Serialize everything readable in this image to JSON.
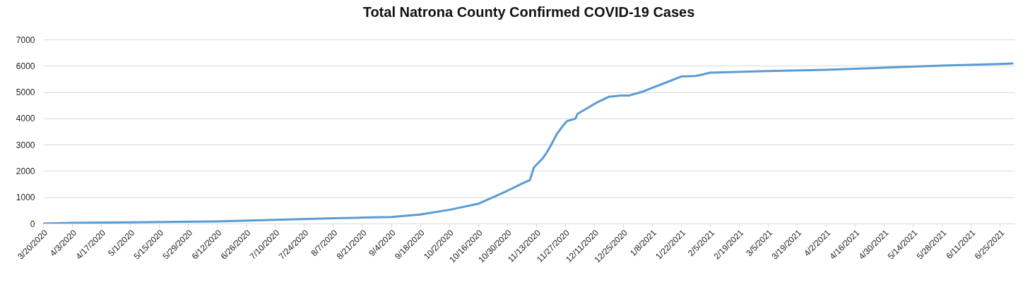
{
  "chart_data": {
    "type": "line",
    "title": "Total Natrona County Confirmed COVID-19 Cases",
    "x": [
      "2020-03-20",
      "2020-04-03",
      "2020-05-01",
      "2020-06-12",
      "2020-07-10",
      "2020-08-07",
      "2020-08-21",
      "2020-09-04",
      "2020-09-18",
      "2020-10-02",
      "2020-10-16",
      "2020-10-30",
      "2020-11-06",
      "2020-11-10",
      "2020-11-12",
      "2020-11-16",
      "2020-11-18",
      "2020-11-20",
      "2020-11-23",
      "2020-11-26",
      "2020-11-28",
      "2020-12-02",
      "2020-12-03",
      "2020-12-08",
      "2020-12-12",
      "2020-12-18",
      "2020-12-24",
      "2020-12-28",
      "2021-01-04",
      "2021-01-08",
      "2021-01-15",
      "2021-01-22",
      "2021-01-29",
      "2021-02-02",
      "2021-02-05",
      "2021-03-05",
      "2021-04-02",
      "2021-04-30",
      "2021-05-28",
      "2021-06-25",
      "2021-07-01"
    ],
    "series": [
      {
        "color": "#5b9bd5",
        "values": [
          0,
          30,
          50,
          80,
          140,
          200,
          225,
          250,
          340,
          520,
          750,
          1240,
          1510,
          1650,
          2140,
          2460,
          2680,
          2950,
          3400,
          3720,
          3900,
          3990,
          4170,
          4400,
          4590,
          4820,
          4870,
          4870,
          5030,
          5160,
          5370,
          5590,
          5610,
          5680,
          5740,
          5800,
          5850,
          5930,
          6010,
          6070,
          6090
        ]
      }
    ],
    "xlim": [
      "2020-03-20",
      "2021-07-02"
    ],
    "xticks": [
      {
        "value": "2020-03-20",
        "label": "3/20/2020"
      },
      {
        "value": "2020-04-03",
        "label": "4/3/2020"
      },
      {
        "value": "2020-04-17",
        "label": "4/17/2020"
      },
      {
        "value": "2020-05-01",
        "label": "5/1/2020"
      },
      {
        "value": "2020-05-15",
        "label": "5/15/2020"
      },
      {
        "value": "2020-05-29",
        "label": "5/29/2020"
      },
      {
        "value": "2020-06-12",
        "label": "6/12/2020"
      },
      {
        "value": "2020-06-26",
        "label": "6/26/2020"
      },
      {
        "value": "2020-07-10",
        "label": "7/10/2020"
      },
      {
        "value": "2020-07-24",
        "label": "7/24/2020"
      },
      {
        "value": "2020-08-07",
        "label": "8/7/2020"
      },
      {
        "value": "2020-08-21",
        "label": "8/21/2020"
      },
      {
        "value": "2020-09-04",
        "label": "9/4/2020"
      },
      {
        "value": "2020-09-18",
        "label": "9/18/2020"
      },
      {
        "value": "2020-10-02",
        "label": "10/2/2020"
      },
      {
        "value": "2020-10-16",
        "label": "10/16/2020"
      },
      {
        "value": "2020-10-30",
        "label": "10/30/2020"
      },
      {
        "value": "2020-11-13",
        "label": "11/13/2020"
      },
      {
        "value": "2020-11-27",
        "label": "11/27/2020"
      },
      {
        "value": "2020-12-11",
        "label": "12/11/2020"
      },
      {
        "value": "2020-12-25",
        "label": "12/25/2020"
      },
      {
        "value": "2021-01-08",
        "label": "1/8/2021"
      },
      {
        "value": "2021-01-22",
        "label": "1/22/2021"
      },
      {
        "value": "2021-02-05",
        "label": "2/5/2021"
      },
      {
        "value": "2021-02-19",
        "label": "2/19/2021"
      },
      {
        "value": "2021-03-05",
        "label": "3/5/2021"
      },
      {
        "value": "2021-03-19",
        "label": "3/19/2021"
      },
      {
        "value": "2021-04-02",
        "label": "4/2/2021"
      },
      {
        "value": "2021-04-16",
        "label": "4/16/2021"
      },
      {
        "value": "2021-04-30",
        "label": "4/30/2021"
      },
      {
        "value": "2021-05-14",
        "label": "5/14/2021"
      },
      {
        "value": "2021-05-28",
        "label": "5/28/2021"
      },
      {
        "value": "2021-06-11",
        "label": "6/11/2021"
      },
      {
        "value": "2021-06-25",
        "label": "6/25/2021"
      }
    ],
    "ylim": [
      0,
      7000
    ],
    "yticks": [
      0,
      1000,
      2000,
      3000,
      4000,
      5000,
      6000,
      7000
    ],
    "grid": "y",
    "marker": "none",
    "line_style": "solid"
  }
}
